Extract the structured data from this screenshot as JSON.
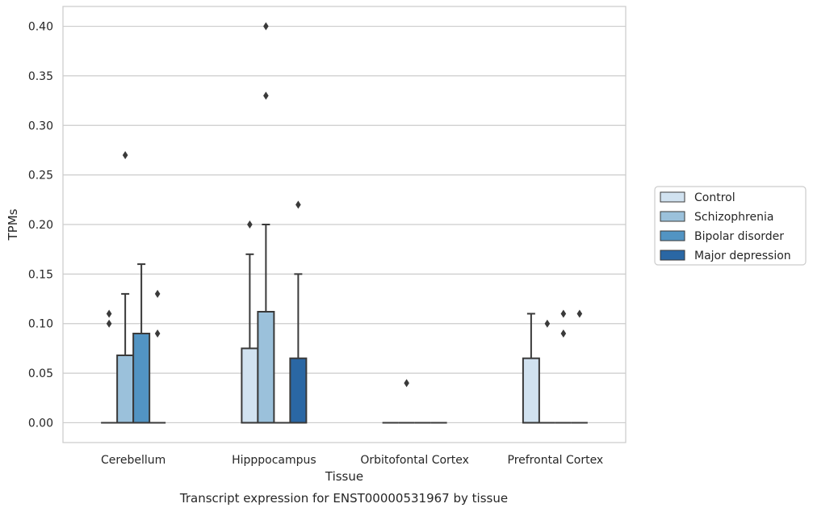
{
  "caption": "Transcript expression for ENST00000531967 by tissue",
  "chart_data": {
    "type": "box",
    "title": "",
    "xlabel": "Tissue",
    "ylabel": "TPMs",
    "ylim": [
      -0.02,
      0.42
    ],
    "yticks": [
      "0.00",
      "0.05",
      "0.10",
      "0.15",
      "0.20",
      "0.25",
      "0.30",
      "0.35",
      "0.40"
    ],
    "grid": "horizontal",
    "legend_position": "right",
    "categories": [
      "Cerebellum",
      "Hipppocampus",
      "Orbitofontal Cortex",
      "Prefrontal Cortex"
    ],
    "series": [
      {
        "name": "Control",
        "color": "#d1e2f0",
        "boxes": [
          {
            "q1": 0,
            "median": 0,
            "q3": 0,
            "whisker_low": 0,
            "whisker_high": 0,
            "outliers": [
              0.1,
              0.11
            ]
          },
          {
            "q1": 0,
            "median": 0,
            "q3": 0.075,
            "whisker_low": 0,
            "whisker_high": 0.17,
            "outliers": [
              0.2
            ]
          },
          {
            "q1": 0,
            "median": 0,
            "q3": 0,
            "whisker_low": 0,
            "whisker_high": 0,
            "outliers": []
          },
          {
            "q1": 0,
            "median": 0,
            "q3": 0.065,
            "whisker_low": 0,
            "whisker_high": 0.11,
            "outliers": []
          }
        ]
      },
      {
        "name": "Schizophrenia",
        "color": "#9bc1db",
        "boxes": [
          {
            "q1": 0,
            "median": 0,
            "q3": 0.068,
            "whisker_low": 0,
            "whisker_high": 0.13,
            "outliers": [
              0.27
            ]
          },
          {
            "q1": 0,
            "median": 0,
            "q3": 0.112,
            "whisker_low": 0,
            "whisker_high": 0.2,
            "outliers": [
              0.33,
              0.4
            ]
          },
          {
            "q1": 0,
            "median": 0,
            "q3": 0,
            "whisker_low": 0,
            "whisker_high": 0,
            "outliers": [
              0.04
            ]
          },
          {
            "q1": 0,
            "median": 0,
            "q3": 0,
            "whisker_low": 0,
            "whisker_high": 0,
            "outliers": [
              0.1
            ]
          }
        ]
      },
      {
        "name": "Bipolar disorder",
        "color": "#5294c3",
        "boxes": [
          {
            "q1": 0,
            "median": 0,
            "q3": 0.09,
            "whisker_low": 0,
            "whisker_high": 0.16,
            "outliers": []
          },
          {
            "q1": 0,
            "median": 0,
            "q3": 0,
            "whisker_low": 0,
            "whisker_high": 0,
            "outliers": []
          },
          {
            "q1": 0,
            "median": 0,
            "q3": 0,
            "whisker_low": 0,
            "whisker_high": 0,
            "outliers": []
          },
          {
            "q1": 0,
            "median": 0,
            "q3": 0,
            "whisker_low": 0,
            "whisker_high": 0,
            "outliers": [
              0.09,
              0.11
            ]
          }
        ]
      },
      {
        "name": "Major depression",
        "color": "#2a67a4",
        "boxes": [
          {
            "q1": 0,
            "median": 0,
            "q3": 0,
            "whisker_low": 0,
            "whisker_high": 0,
            "outliers": [
              0.09,
              0.13
            ]
          },
          {
            "q1": 0,
            "median": 0,
            "q3": 0.065,
            "whisker_low": 0,
            "whisker_high": 0.15,
            "outliers": [
              0.22
            ]
          },
          {
            "q1": 0,
            "median": 0,
            "q3": 0,
            "whisker_low": 0,
            "whisker_high": 0,
            "outliers": []
          },
          {
            "q1": 0,
            "median": 0,
            "q3": 0,
            "whisker_low": 0,
            "whisker_high": 0,
            "outliers": [
              0.11
            ]
          }
        ]
      }
    ]
  }
}
